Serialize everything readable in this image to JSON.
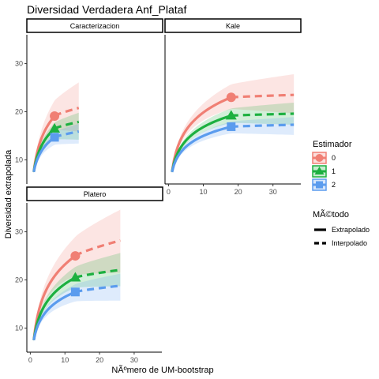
{
  "chart_data": {
    "type": "line",
    "title": "Diversidad Verdadera Anf_Plataf",
    "xlabel": "NÃºmero de UM-bootstrap",
    "ylabel": "Diversidad extrapolada",
    "xlim": [
      -1,
      38
    ],
    "ylim": [
      5,
      36
    ],
    "x_ticks": [
      0,
      10,
      20,
      30
    ],
    "y_ticks": [
      10,
      20,
      30
    ],
    "grid": false,
    "legend": {
      "placement": "right",
      "estimator_title": "Estimador",
      "estimator_entries": [
        "0",
        "1",
        "2"
      ],
      "method_title": "MÃ©todo",
      "method_entries": [
        "Extrapolado",
        "Interpolado"
      ]
    },
    "colors": {
      "0": "#F07F74",
      "1": "#1DB040",
      "2": "#5B9CEE"
    },
    "panels": [
      {
        "name": "Caracterizacion",
        "observed_x": 7,
        "max_x": 14,
        "series": [
          {
            "name": "0",
            "observed_y": 19.1,
            "final_y": 20.8,
            "lower_final": 16.2,
            "upper_final": 25.8
          },
          {
            "name": "1",
            "observed_y": 16.5,
            "final_y": 17.9,
            "lower_final": 14.5,
            "upper_final": 19.5
          },
          {
            "name": "2",
            "observed_y": 14.7,
            "final_y": 15.9,
            "lower_final": 13.7,
            "upper_final": 17.2
          }
        ]
      },
      {
        "name": "Kale",
        "observed_x": 18,
        "max_x": 36,
        "series": [
          {
            "name": "0",
            "observed_y": 23.0,
            "final_y": 23.5,
            "lower_final": 20.0,
            "upper_final": 27.5
          },
          {
            "name": "1",
            "observed_y": 19.2,
            "final_y": 19.6,
            "lower_final": 17.6,
            "upper_final": 21.6
          },
          {
            "name": "2",
            "observed_y": 16.9,
            "final_y": 17.3,
            "lower_final": 15.5,
            "upper_final": 18.6
          }
        ]
      },
      {
        "name": "Platero",
        "observed_x": 13,
        "max_x": 26,
        "series": [
          {
            "name": "0",
            "observed_y": 25.0,
            "final_y": 28.2,
            "lower_final": 21.8,
            "upper_final": 34.3
          },
          {
            "name": "1",
            "observed_y": 20.5,
            "final_y": 22.1,
            "lower_final": 19.0,
            "upper_final": 25.3
          },
          {
            "name": "2",
            "observed_y": 17.5,
            "final_y": 18.8,
            "lower_final": 16.0,
            "upper_final": 21.0
          }
        ]
      }
    ],
    "start_x": 1,
    "start_y": 7.5
  }
}
